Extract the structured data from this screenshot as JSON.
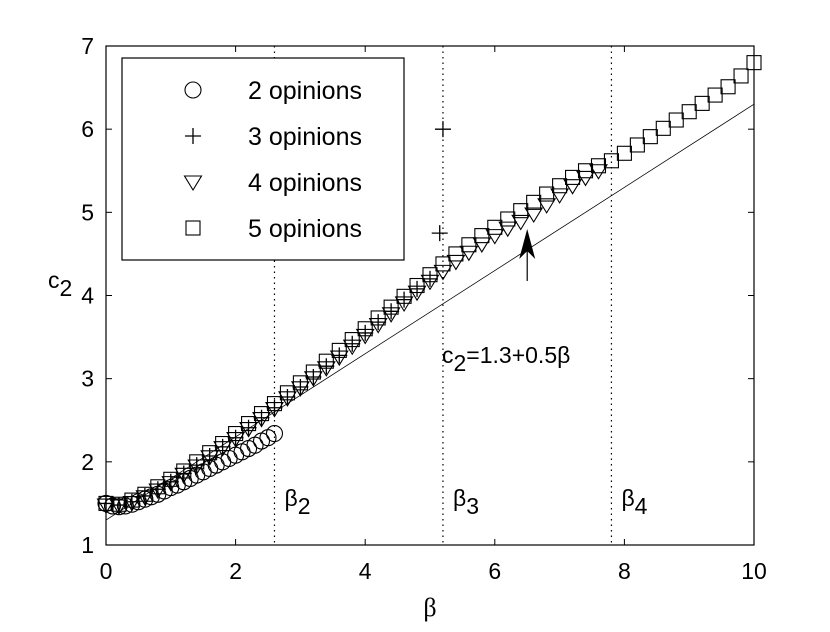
{
  "chart_data": {
    "type": "scatter",
    "xlabel": "β",
    "ylabel": "c₂",
    "xlim": [
      0,
      10
    ],
    "ylim": [
      1,
      7
    ],
    "xticks": [
      0,
      2,
      4,
      6,
      8,
      10
    ],
    "yticks": [
      1,
      2,
      3,
      4,
      5,
      6,
      7
    ],
    "grid": false,
    "legend_position": "top-left",
    "series": [
      {
        "name": "2 opinions",
        "marker": "circle",
        "color": "#000000",
        "x": [
          0.0,
          0.1,
          0.2,
          0.3,
          0.4,
          0.5,
          0.6,
          0.7,
          0.8,
          0.9,
          1.0,
          1.1,
          1.2,
          1.3,
          1.4,
          1.5,
          1.6,
          1.7,
          1.8,
          1.9,
          2.0,
          2.1,
          2.2,
          2.3,
          2.4,
          2.5,
          2.6
        ],
        "y": [
          1.5,
          1.47,
          1.46,
          1.47,
          1.49,
          1.52,
          1.55,
          1.58,
          1.61,
          1.65,
          1.69,
          1.72,
          1.76,
          1.8,
          1.84,
          1.88,
          1.92,
          1.96,
          2.0,
          2.04,
          2.08,
          2.12,
          2.16,
          2.2,
          2.25,
          2.29,
          2.34
        ]
      },
      {
        "name": "3 opinions",
        "marker": "plus",
        "color": "#000000",
        "x": [
          0.0,
          0.2,
          0.4,
          0.6,
          0.8,
          1.0,
          1.2,
          1.4,
          1.6,
          1.8,
          2.0,
          2.2,
          2.4,
          2.6,
          2.8,
          3.0,
          3.2,
          3.4,
          3.6,
          3.8,
          4.0,
          4.2,
          4.4,
          4.6,
          4.8,
          5.0,
          5.15,
          5.2
        ],
        "y": [
          1.5,
          1.48,
          1.52,
          1.59,
          1.67,
          1.76,
          1.86,
          1.96,
          2.07,
          2.18,
          2.29,
          2.41,
          2.53,
          2.65,
          2.78,
          2.9,
          3.02,
          3.15,
          3.28,
          3.42,
          3.55,
          3.68,
          3.81,
          3.95,
          4.08,
          4.2,
          4.75,
          6.0
        ]
      },
      {
        "name": "4 opinions",
        "marker": "triangle-down",
        "color": "#000000",
        "x": [
          0.0,
          0.2,
          0.4,
          0.6,
          0.8,
          1.0,
          1.2,
          1.4,
          1.6,
          1.8,
          2.0,
          2.2,
          2.4,
          2.6,
          2.8,
          3.0,
          3.2,
          3.4,
          3.6,
          3.8,
          4.0,
          4.2,
          4.4,
          4.6,
          4.8,
          5.0,
          5.2,
          5.4,
          5.6,
          5.8,
          6.0,
          6.2,
          6.4,
          6.6,
          6.8,
          7.0,
          7.2,
          7.4,
          7.6
        ],
        "y": [
          1.48,
          1.47,
          1.51,
          1.58,
          1.66,
          1.75,
          1.85,
          1.95,
          2.06,
          2.17,
          2.28,
          2.4,
          2.52,
          2.64,
          2.77,
          2.89,
          3.01,
          3.13,
          3.26,
          3.39,
          3.52,
          3.65,
          3.78,
          3.91,
          4.04,
          4.17,
          4.29,
          4.41,
          4.52,
          4.62,
          4.72,
          4.81,
          4.89,
          4.98,
          5.09,
          5.21,
          5.32,
          5.42,
          5.5
        ]
      },
      {
        "name": "5 opinions",
        "marker": "square",
        "color": "#000000",
        "x": [
          0.0,
          0.2,
          0.4,
          0.6,
          0.8,
          1.0,
          1.2,
          1.4,
          1.6,
          1.8,
          2.0,
          2.2,
          2.4,
          2.6,
          2.8,
          3.0,
          3.2,
          3.4,
          3.6,
          3.8,
          4.0,
          4.2,
          4.4,
          4.6,
          4.8,
          5.0,
          5.2,
          5.4,
          5.6,
          5.8,
          6.0,
          6.2,
          6.4,
          6.6,
          6.8,
          7.0,
          7.2,
          7.4,
          7.6,
          7.8,
          8.0,
          8.2,
          8.4,
          8.6,
          8.8,
          9.0,
          9.2,
          9.4,
          9.6,
          9.8,
          10.0
        ],
        "y": [
          1.5,
          1.49,
          1.54,
          1.61,
          1.7,
          1.79,
          1.89,
          2.0,
          2.11,
          2.22,
          2.34,
          2.46,
          2.58,
          2.7,
          2.83,
          2.95,
          3.08,
          3.21,
          3.34,
          3.47,
          3.6,
          3.73,
          3.86,
          3.99,
          4.12,
          4.25,
          4.38,
          4.5,
          4.61,
          4.72,
          4.82,
          4.92,
          5.02,
          5.12,
          5.22,
          5.32,
          5.42,
          5.5,
          5.56,
          5.62,
          5.71,
          5.81,
          5.91,
          6.01,
          6.11,
          6.21,
          6.31,
          6.41,
          6.51,
          6.64,
          6.8
        ]
      }
    ],
    "fit_line": {
      "label": "c₂=1.3+0.5β",
      "x": [
        0,
        10
      ],
      "y": [
        1.3,
        6.3
      ]
    },
    "annotation": {
      "text": "c₂=1.3+0.5β",
      "x": 6.5,
      "y": 4.8
    },
    "vertical_lines": [
      {
        "x": 2.6,
        "label": "β₂"
      },
      {
        "x": 5.2,
        "label": "β₃"
      },
      {
        "x": 7.8,
        "label": "β₄"
      }
    ]
  }
}
